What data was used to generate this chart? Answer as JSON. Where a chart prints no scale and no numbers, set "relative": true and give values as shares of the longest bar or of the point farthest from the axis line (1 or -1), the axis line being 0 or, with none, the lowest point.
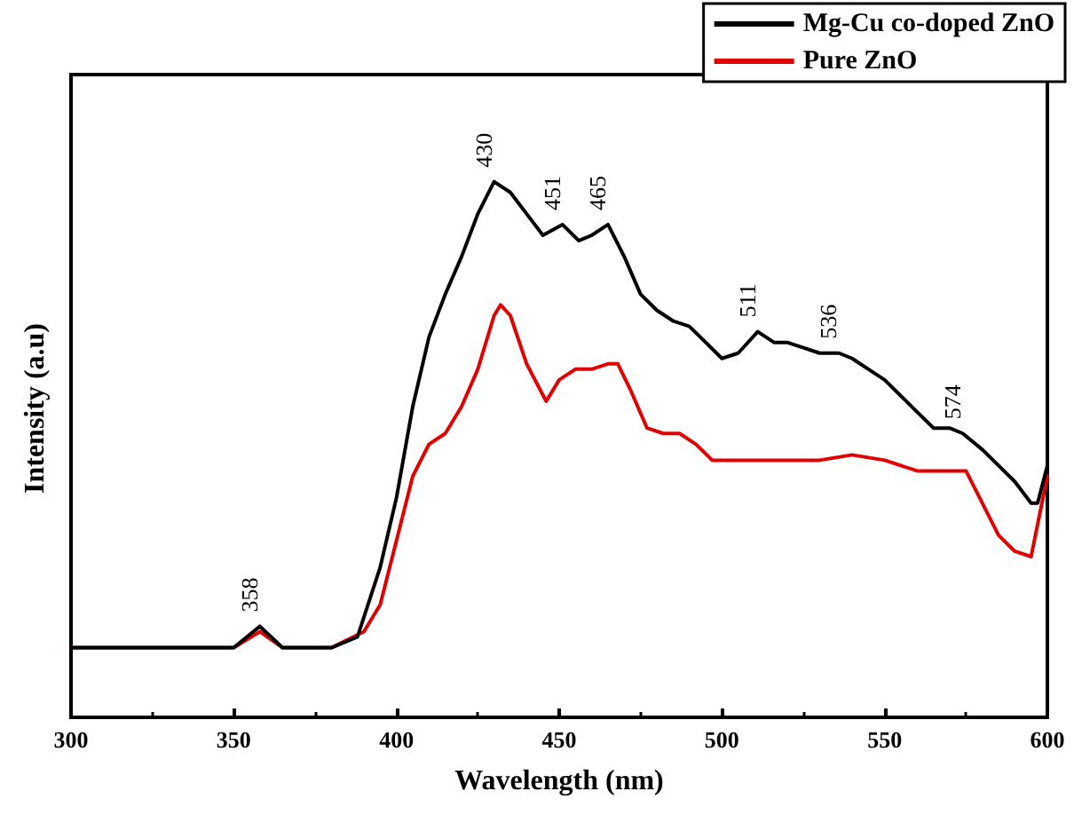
{
  "chart_data": {
    "type": "line",
    "relative": true,
    "xlabel": "Wavelength (nm)",
    "ylabel": "Intensity (a.u)",
    "xlim": [
      300,
      600
    ],
    "xticks": [
      300,
      350,
      400,
      450,
      500,
      550,
      600
    ],
    "legend": "top right",
    "grid": false,
    "marker": "none",
    "line_style": "solid",
    "series": [
      {
        "name": "Mg-Cu co-doped ZnO",
        "color": "#000000",
        "x": [
          300,
          340,
          350,
          358,
          365,
          380,
          388,
          395,
          400,
          405,
          410,
          415,
          420,
          425,
          430,
          435,
          440,
          445,
          451,
          456,
          460,
          465,
          470,
          475,
          480,
          485,
          490,
          495,
          500,
          505,
          511,
          516,
          520,
          525,
          530,
          536,
          540,
          545,
          550,
          555,
          560,
          565,
          570,
          574,
          580,
          585,
          590,
          595,
          597,
          600
        ],
        "values": [
          0.13,
          0.13,
          0.13,
          0.17,
          0.13,
          0.13,
          0.15,
          0.28,
          0.41,
          0.58,
          0.71,
          0.79,
          0.86,
          0.94,
          1,
          0.98,
          0.94,
          0.9,
          0.92,
          0.89,
          0.9,
          0.92,
          0.86,
          0.79,
          0.76,
          0.74,
          0.73,
          0.7,
          0.67,
          0.68,
          0.72,
          0.7,
          0.7,
          0.69,
          0.68,
          0.68,
          0.67,
          0.65,
          0.63,
          0.6,
          0.57,
          0.54,
          0.54,
          0.53,
          0.5,
          0.47,
          0.44,
          0.4,
          0.4,
          0.47
        ]
      },
      {
        "name": "Pure ZnO",
        "color": "#e00000",
        "x": [
          300,
          350,
          358,
          365,
          380,
          390,
          395,
          400,
          405,
          410,
          415,
          420,
          425,
          430,
          432,
          435,
          440,
          446,
          450,
          455,
          460,
          465,
          468,
          472,
          477,
          482,
          487,
          492,
          497,
          505,
          520,
          530,
          540,
          550,
          560,
          570,
          575,
          580,
          585,
          590,
          595,
          600
        ],
        "values": [
          0.13,
          0.13,
          0.16,
          0.13,
          0.13,
          0.16,
          0.21,
          0.33,
          0.45,
          0.51,
          0.53,
          0.58,
          0.65,
          0.75,
          0.77,
          0.75,
          0.66,
          0.59,
          0.63,
          0.65,
          0.65,
          0.66,
          0.66,
          0.61,
          0.54,
          0.53,
          0.53,
          0.51,
          0.48,
          0.48,
          0.48,
          0.48,
          0.49,
          0.48,
          0.46,
          0.46,
          0.46,
          0.4,
          0.34,
          0.31,
          0.3,
          0.45
        ]
      }
    ],
    "annotations": [
      {
        "text": "358",
        "x": 358,
        "y": 0.17
      },
      {
        "text": "430",
        "x": 430,
        "y": 1
      },
      {
        "text": "451",
        "x": 451,
        "y": 0.92
      },
      {
        "text": "465",
        "x": 465,
        "y": 0.92
      },
      {
        "text": "511",
        "x": 511,
        "y": 0.72
      },
      {
        "text": "536",
        "x": 536,
        "y": 0.68
      },
      {
        "text": "574",
        "x": 574,
        "y": 0.53
      }
    ]
  }
}
